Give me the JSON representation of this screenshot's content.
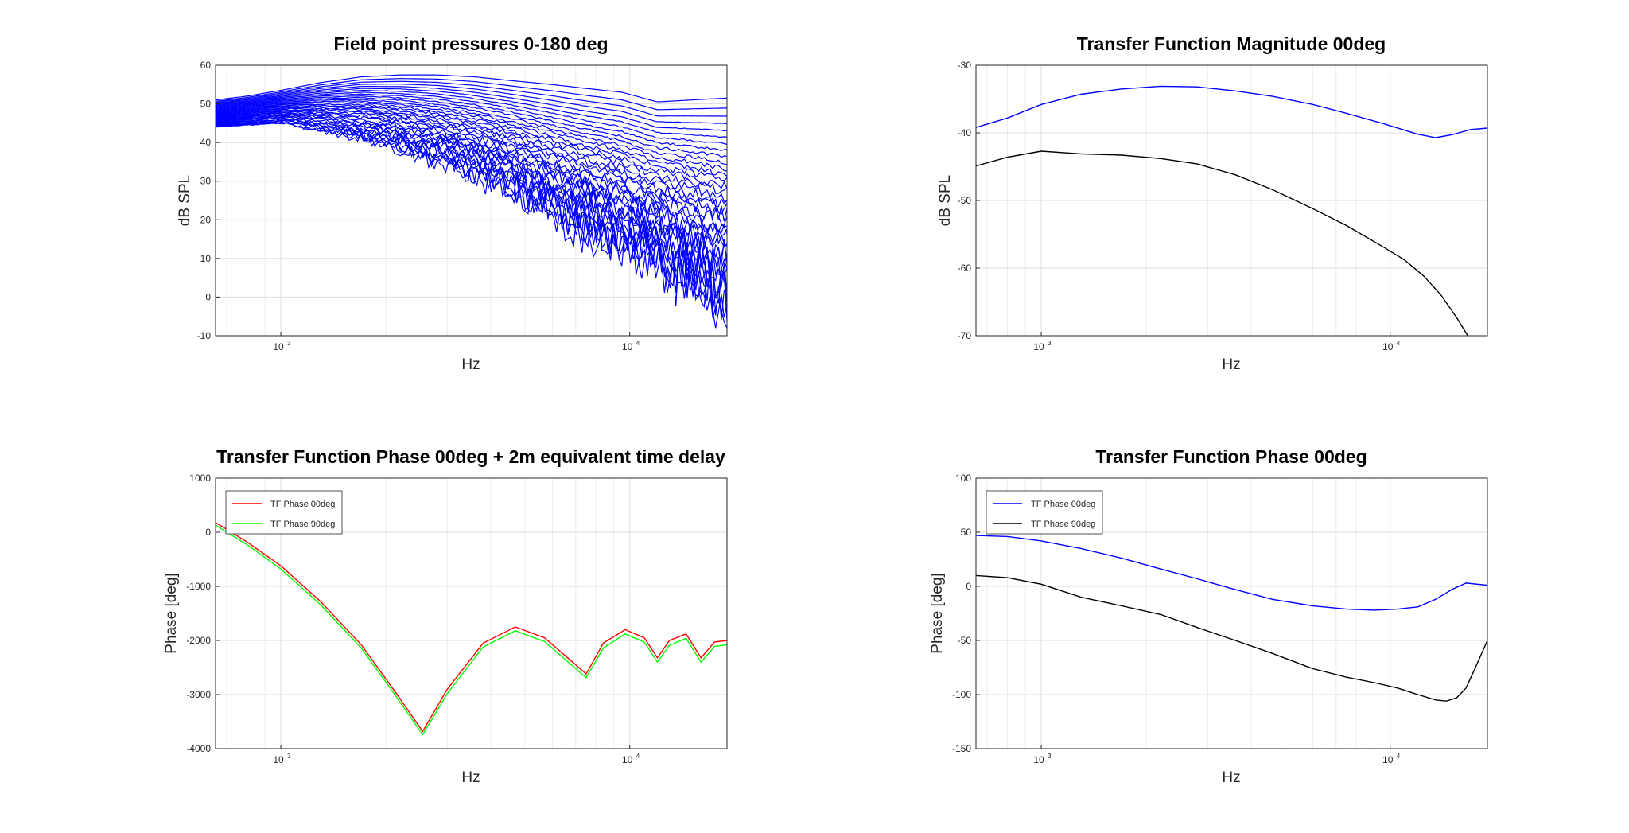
{
  "colors": {
    "blue": "#0000ff",
    "black": "#000000",
    "red": "#ff0000",
    "green": "#00ff00"
  },
  "chart_data": [
    {
      "id": "p1",
      "type": "line",
      "title": "Field point pressures 0-180 deg",
      "xlabel": "Hz",
      "ylabel": "dB SPL",
      "xscale": "log",
      "xlim": [
        650,
        19000
      ],
      "ylim": [
        -10,
        60
      ],
      "yticks": [
        -10,
        0,
        10,
        20,
        30,
        40,
        50,
        60
      ],
      "xticks": [
        {
          "value": 1000,
          "base": "10",
          "exp": "3"
        },
        {
          "value": 10000,
          "base": "10",
          "exp": "4"
        }
      ],
      "grid": true,
      "legend": null,
      "family": {
        "count": 37,
        "color": "blue",
        "description_values": "directivity curves from 0 deg to 180 deg in 5 deg steps",
        "x": [
          650,
          800,
          1000,
          1300,
          1700,
          2200,
          2800,
          3600,
          4600,
          6000,
          7500,
          9500,
          12000,
          15000,
          19000
        ],
        "on_axis": [
          51,
          52,
          53.5,
          55.5,
          57,
          57.5,
          57.5,
          57,
          56,
          55,
          54,
          53,
          50.5,
          51,
          51.5
        ],
        "rear": [
          44,
          44.5,
          45,
          43,
          41,
          38,
          35,
          31,
          27,
          21,
          16,
          12,
          8,
          3,
          -3
        ]
      }
    },
    {
      "id": "p2",
      "type": "line",
      "title": "Transfer Function Magnitude 00deg",
      "xlabel": "Hz",
      "ylabel": "dB SPL",
      "xscale": "log",
      "xlim": [
        650,
        19000
      ],
      "ylim": [
        -70,
        -30
      ],
      "yticks": [
        -70,
        -60,
        -50,
        -40,
        -30
      ],
      "xticks": [
        {
          "value": 1000,
          "base": "10",
          "exp": "3"
        },
        {
          "value": 10000,
          "base": "10",
          "exp": "4"
        }
      ],
      "grid": true,
      "legend": null,
      "series": [
        {
          "color": "blue",
          "x": [
            650,
            800,
            1000,
            1300,
            1700,
            2200,
            2800,
            3600,
            4600,
            6000,
            7500,
            9500,
            12000,
            13500,
            15000,
            17000,
            19000
          ],
          "y": [
            -39.2,
            -37.8,
            -35.8,
            -34.3,
            -33.5,
            -33.1,
            -33.2,
            -33.8,
            -34.6,
            -35.8,
            -37.1,
            -38.6,
            -40.2,
            -40.7,
            -40.3,
            -39.5,
            -39.3
          ]
        },
        {
          "color": "black",
          "x": [
            650,
            800,
            1000,
            1300,
            1700,
            2200,
            2800,
            3600,
            4600,
            6000,
            7500,
            9500,
            11000,
            12500,
            14000,
            15500,
            16700
          ],
          "y": [
            -44.9,
            -43.6,
            -42.7,
            -43.1,
            -43.3,
            -43.8,
            -44.6,
            -46.2,
            -48.4,
            -51.2,
            -53.7,
            -56.8,
            -58.8,
            -61.2,
            -64.0,
            -67.3,
            -70
          ]
        }
      ]
    },
    {
      "id": "p3",
      "type": "line",
      "title": "Transfer Function Phase 00deg + 2m equivalent time delay",
      "xlabel": "Hz",
      "ylabel": "Phase [deg]",
      "xscale": "log",
      "xlim": [
        650,
        19000
      ],
      "ylim": [
        -4000,
        1000
      ],
      "yticks": [
        -4000,
        -3000,
        -2000,
        -1000,
        0,
        1000
      ],
      "xticks": [
        {
          "value": 1000,
          "base": "10",
          "exp": "3"
        },
        {
          "value": 10000,
          "base": "10",
          "exp": "4"
        }
      ],
      "grid": true,
      "legend": {
        "placement": "top-left",
        "entries": [
          "TF Phase 00deg",
          "TF Phase 90deg"
        ]
      },
      "series": [
        {
          "name": "TF Phase 00deg",
          "color": "red",
          "x": [
            650,
            800,
            1000,
            1300,
            1700,
            2100,
            2550,
            3000,
            3800,
            4700,
            5700,
            6800,
            7500,
            8400,
            9700,
            11000,
            12000,
            13000,
            14500,
            16000,
            17500,
            19000
          ],
          "y": [
            180,
            -180,
            -620,
            -1280,
            -2080,
            -2900,
            -3680,
            -2900,
            -2050,
            -1750,
            -1950,
            -2380,
            -2620,
            -2050,
            -1800,
            -1950,
            -2320,
            -2000,
            -1880,
            -2320,
            -2030,
            -2000
          ]
        },
        {
          "name": "TF Phase 90deg",
          "color": "green",
          "x": [
            650,
            800,
            1000,
            1300,
            1700,
            2100,
            2550,
            3000,
            3800,
            4700,
            5700,
            6800,
            7500,
            8400,
            9700,
            11000,
            12000,
            13000,
            14500,
            16000,
            17500,
            19000
          ],
          "y": [
            130,
            -230,
            -680,
            -1340,
            -2140,
            -2960,
            -3740,
            -2980,
            -2120,
            -1820,
            -2020,
            -2450,
            -2690,
            -2140,
            -1880,
            -2030,
            -2400,
            -2090,
            -1960,
            -2400,
            -2110,
            -2080
          ]
        }
      ]
    },
    {
      "id": "p4",
      "type": "line",
      "title": "Transfer Function Phase 00deg",
      "xlabel": "Hz",
      "ylabel": "Phase [deg]",
      "xscale": "log",
      "xlim": [
        650,
        19000
      ],
      "ylim": [
        -150,
        100
      ],
      "yticks": [
        -150,
        -100,
        -50,
        0,
        50,
        100
      ],
      "xticks": [
        {
          "value": 1000,
          "base": "10",
          "exp": "3"
        },
        {
          "value": 10000,
          "base": "10",
          "exp": "4"
        }
      ],
      "grid": true,
      "legend": {
        "placement": "top-left",
        "entries": [
          "TF Phase 00deg",
          "TF Phase 90deg"
        ]
      },
      "series": [
        {
          "name": "TF Phase 00deg",
          "color": "blue",
          "x": [
            650,
            800,
            1000,
            1300,
            1700,
            2200,
            2800,
            3600,
            4600,
            6000,
            7500,
            9000,
            10500,
            12000,
            13500,
            15000,
            16500,
            19000
          ],
          "y": [
            47,
            46,
            42,
            35,
            26,
            16,
            7,
            -3,
            -12,
            -18,
            -21,
            -22,
            -21,
            -19,
            -12,
            -3,
            3,
            1
          ]
        },
        {
          "name": "TF Phase 90deg",
          "color": "black",
          "x": [
            650,
            800,
            1000,
            1300,
            1700,
            2200,
            2800,
            3600,
            4600,
            6000,
            7500,
            9000,
            10500,
            12000,
            13500,
            14500,
            15500,
            16500,
            17500,
            19000
          ],
          "y": [
            10,
            8,
            2,
            -10,
            -18,
            -26,
            -38,
            -50,
            -62,
            -76,
            -84,
            -89,
            -94,
            -100,
            -105,
            -106,
            -103,
            -94,
            -76,
            -50
          ]
        }
      ]
    }
  ]
}
